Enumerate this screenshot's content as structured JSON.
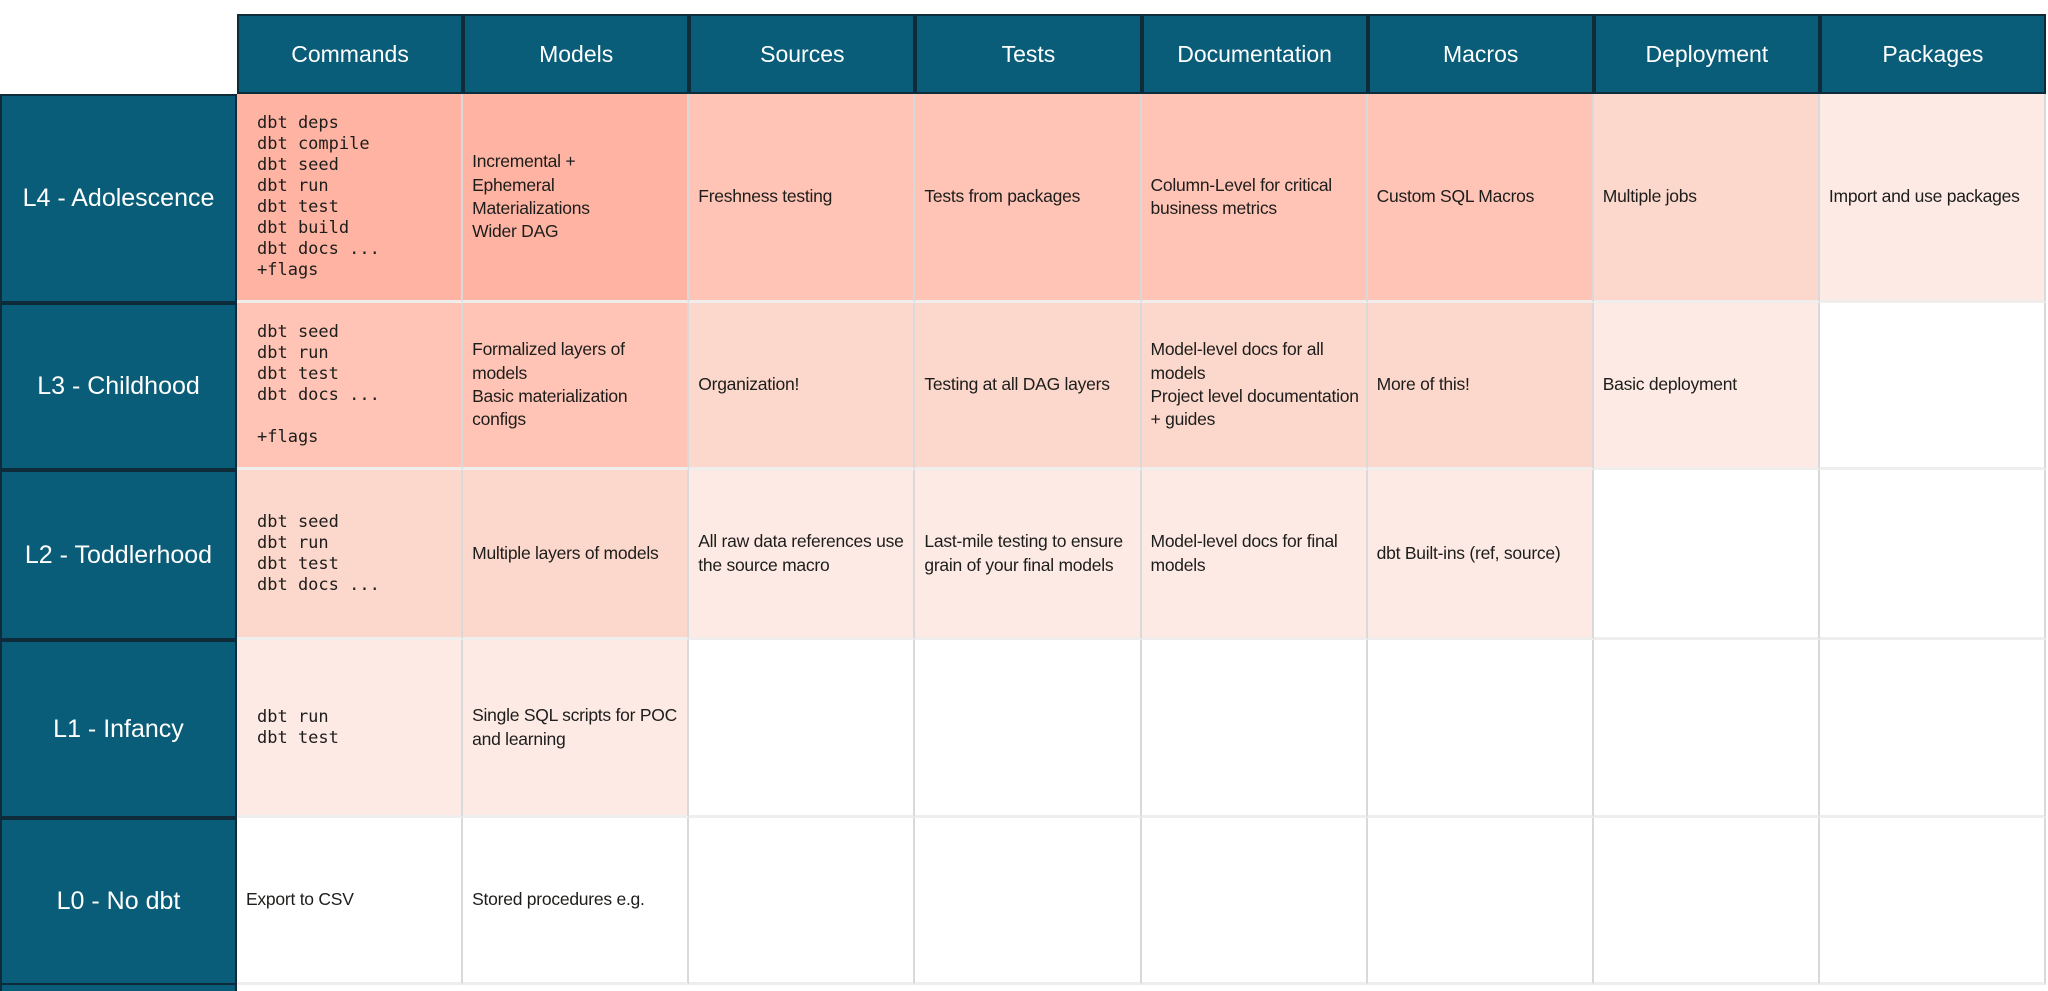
{
  "chart_data": {
    "type": "table",
    "columns": [
      "Commands",
      "Models",
      "Sources",
      "Tests",
      "Documentation",
      "Macros",
      "Deployment",
      "Packages"
    ],
    "rows": [
      {
        "label": "L4 - Adolescence",
        "cells": {
          "commands": {
            "text": "dbt deps\ndbt compile\ndbt seed\ndbt run\ndbt test\ndbt build\ndbt docs ...\n+flags",
            "mono": true,
            "level": 0
          },
          "models": {
            "text": "Incremental +\nEphemeral\nMaterializations\nWider DAG",
            "level": 0
          },
          "sources": {
            "text": "Freshness testing",
            "level": 1
          },
          "tests": {
            "text": "Tests from packages",
            "level": 1
          },
          "documentation": {
            "text": "Column-Level for critical business metrics",
            "level": 1
          },
          "macros": {
            "text": "Custom SQL Macros",
            "level": 1
          },
          "deployment": {
            "text": "Multiple jobs",
            "level": 2
          },
          "packages": {
            "text": "Import and use packages",
            "level": 3
          }
        }
      },
      {
        "label": "L3 - Childhood",
        "cells": {
          "commands": {
            "text": "dbt seed\ndbt run\ndbt test\ndbt docs ...\n\n+flags",
            "mono": true,
            "level": 1
          },
          "models": {
            "text": "Formalized layers of models\nBasic materialization configs",
            "level": 1
          },
          "sources": {
            "text": "Organization!",
            "level": 2
          },
          "tests": {
            "text": "Testing at all DAG layers",
            "level": 2
          },
          "documentation": {
            "text": "Model-level docs for all models\nProject level documentation + guides",
            "level": 2
          },
          "macros": {
            "text": "More of this!",
            "level": 2
          },
          "deployment": {
            "text": "Basic deployment",
            "level": 3
          },
          "packages": {
            "text": "",
            "level": -1
          }
        }
      },
      {
        "label": "L2 - Toddlerhood",
        "cells": {
          "commands": {
            "text": "dbt seed\ndbt run\ndbt test\ndbt docs ...",
            "mono": true,
            "level": 2
          },
          "models": {
            "text": "Multiple layers of models",
            "level": 2
          },
          "sources": {
            "text": "All raw data references use the source macro",
            "level": 3
          },
          "tests": {
            "text": "Last-mile testing to ensure grain of your final models",
            "level": 3
          },
          "documentation": {
            "text": "Model-level docs for final models",
            "level": 3
          },
          "macros": {
            "text": "dbt Built-ins (ref, source)",
            "level": 3
          },
          "deployment": {
            "text": "",
            "level": -1
          },
          "packages": {
            "text": "",
            "level": -1
          }
        }
      },
      {
        "label": "L1 - Infancy",
        "cells": {
          "commands": {
            "text": "dbt run\ndbt test",
            "mono": true,
            "level": 3
          },
          "models": {
            "text": "Single SQL scripts for POC and learning",
            "level": 3
          },
          "sources": {
            "text": "",
            "level": -1
          },
          "tests": {
            "text": "",
            "level": -1
          },
          "documentation": {
            "text": "",
            "level": -1
          },
          "macros": {
            "text": "",
            "level": -1
          },
          "deployment": {
            "text": "",
            "level": -1
          },
          "packages": {
            "text": "",
            "level": -1
          }
        }
      },
      {
        "label": "L0 - No dbt",
        "cells": {
          "commands": {
            "text": "Export to CSV",
            "level": -1
          },
          "models": {
            "text": "Stored procedures e.g.",
            "level": -1
          },
          "sources": {
            "text": "",
            "level": -1
          },
          "tests": {
            "text": "",
            "level": -1
          },
          "documentation": {
            "text": "",
            "level": -1
          },
          "macros": {
            "text": "",
            "level": -1
          },
          "deployment": {
            "text": "",
            "level": -1
          },
          "packages": {
            "text": "",
            "level": -1
          }
        }
      }
    ],
    "palette": {
      "teal": "#095d78",
      "teal_border": "#0e2b39",
      "header_text": "#ffffff",
      "text": "#1d1d1b",
      "level0": "#ffb3a3",
      "level1": "#ffc4b5",
      "level2": "#fcd7cb",
      "level3": "#fdeae4",
      "empty": "#ffffff",
      "grid_vertical": "#d9d9d9",
      "grid_horizontal": "#f0eeec"
    },
    "legend_note": "cell shading darkens with dbt maturity level"
  }
}
